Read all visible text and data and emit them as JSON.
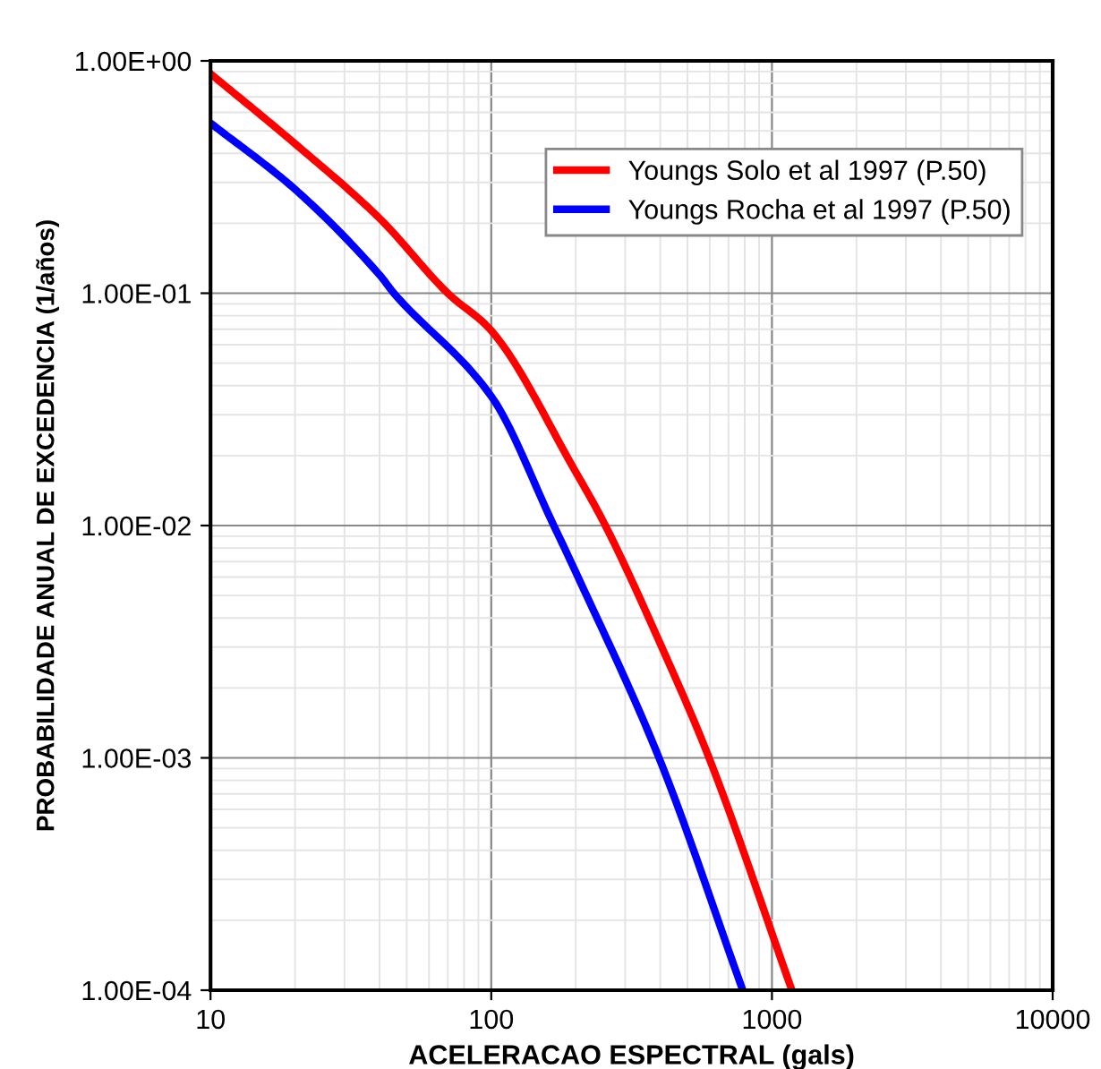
{
  "chart_data": {
    "type": "line",
    "xlabel": "ACELERACAO ESPECTRAL (gals)",
    "ylabel": "PROBABILIDADE ANUAL DE EXCEDENCIA (1/años)",
    "log": "xy",
    "grid": true,
    "legend": "top right",
    "marker": "none",
    "line_style": "solid",
    "xlim": [
      10,
      10000
    ],
    "xticks": [
      10,
      100,
      1000,
      10000
    ],
    "ylim": [
      0.0001,
      1
    ],
    "yticks": [
      {
        "value": 0.0001,
        "label": "1.00E-04"
      },
      {
        "value": 0.001,
        "label": "1.00E-03"
      },
      {
        "value": 0.01,
        "label": "1.00E-02"
      },
      {
        "value": 0.1,
        "label": "1.00E-01"
      },
      {
        "value": 1,
        "label": "1.00E+00"
      }
    ],
    "series": [
      {
        "name": "Youngs Solo et al 1997 (P.50)",
        "color": "#ff0000",
        "x": [
          10,
          20,
          40,
          70,
          100,
          200,
          255,
          400,
          597,
          1178
        ],
        "values": [
          0.88,
          0.44,
          0.21,
          0.1,
          0.069,
          0.017,
          0.01,
          0.0031,
          0.001,
          0.0001
        ]
      },
      {
        "name": "Youngs Rocha et al 1997 (P.50)",
        "color": "#0000ff",
        "x": [
          10,
          20,
          40,
          45,
          100,
          167,
          200,
          396,
          787
        ],
        "values": [
          0.54,
          0.28,
          0.12,
          0.1,
          0.036,
          0.01,
          0.0063,
          0.001,
          0.0001
        ]
      }
    ]
  }
}
